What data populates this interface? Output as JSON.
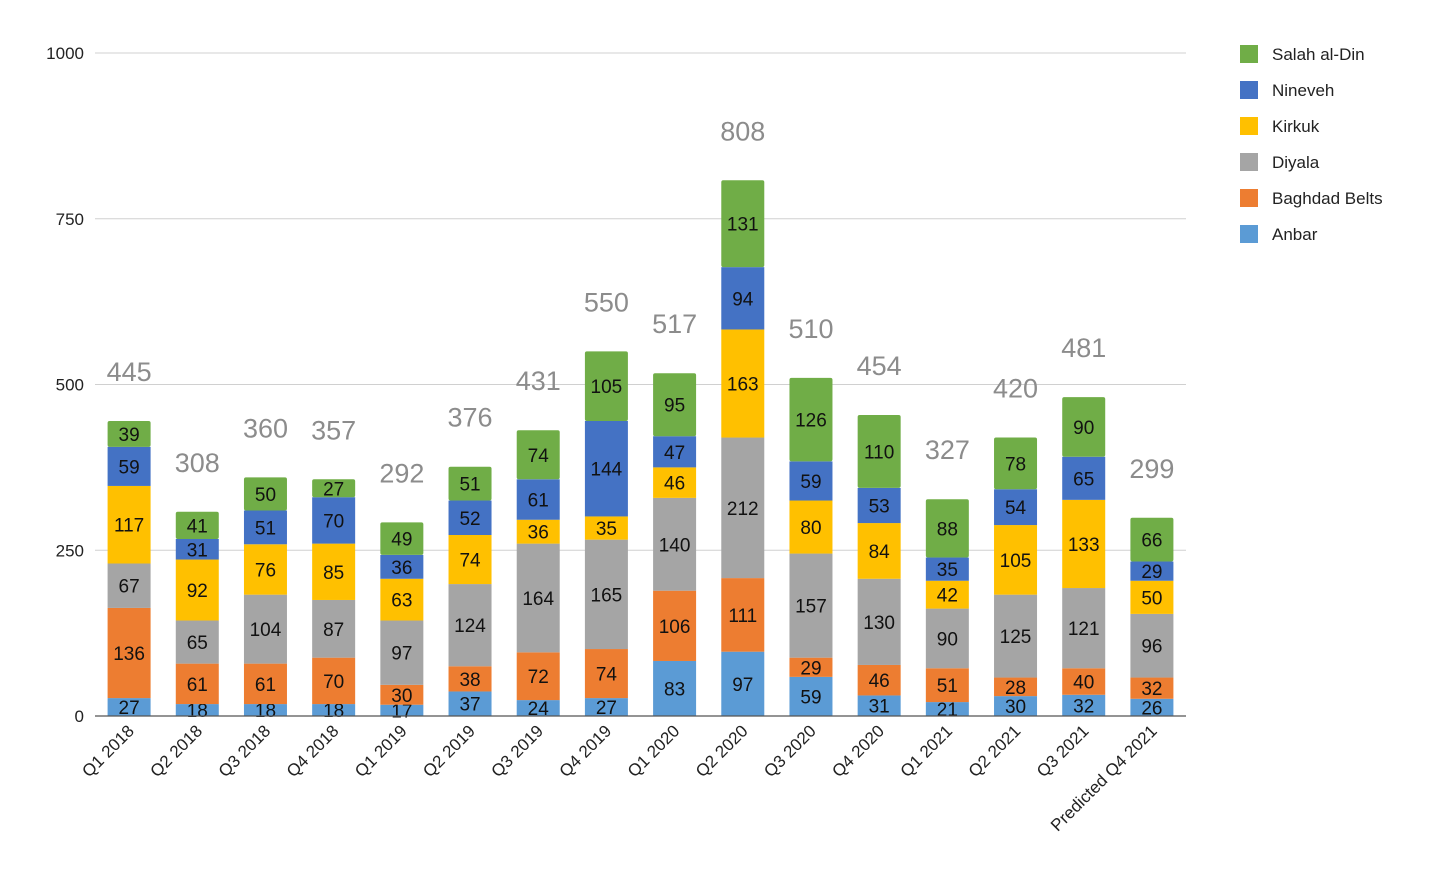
{
  "chart_data": {
    "type": "bar",
    "stacked": true,
    "title": "",
    "xlabel": "",
    "ylabel": "",
    "ylim": [
      0,
      1000
    ],
    "yticks": [
      0,
      250,
      500,
      750,
      1000
    ],
    "grid": true,
    "legend_position": "right",
    "categories": [
      "Q1 2018",
      "Q2 2018",
      "Q3 2018",
      "Q4 2018",
      "Q1 2019",
      "Q2 2019",
      "Q3 2019",
      "Q4 2019",
      "Q1 2020",
      "Q2 2020",
      "Q3 2020",
      "Q4 2020",
      "Q1 2021",
      "Q2 2021",
      "Q3 2021",
      "Predicted Q4 2021"
    ],
    "series": [
      {
        "name": "Anbar",
        "color": "#5b9bd5",
        "values": [
          27,
          18,
          18,
          18,
          17,
          37,
          24,
          27,
          83,
          97,
          59,
          31,
          21,
          30,
          32,
          26
        ]
      },
      {
        "name": "Baghdad Belts",
        "color": "#ed7d31",
        "values": [
          136,
          61,
          61,
          70,
          30,
          38,
          72,
          74,
          106,
          111,
          29,
          46,
          51,
          28,
          40,
          32
        ]
      },
      {
        "name": "Diyala",
        "color": "#a5a5a5",
        "values": [
          67,
          65,
          104,
          87,
          97,
          124,
          164,
          165,
          140,
          212,
          157,
          130,
          90,
          125,
          121,
          96
        ]
      },
      {
        "name": "Kirkuk",
        "color": "#ffc000",
        "values": [
          117,
          92,
          76,
          85,
          63,
          74,
          36,
          35,
          46,
          163,
          80,
          84,
          42,
          105,
          133,
          50
        ]
      },
      {
        "name": "Nineveh",
        "color": "#4472c4",
        "values": [
          59,
          31,
          51,
          70,
          36,
          52,
          61,
          144,
          47,
          94,
          59,
          53,
          35,
          54,
          65,
          29
        ]
      },
      {
        "name": "Salah al-Din",
        "color": "#70ad47",
        "values": [
          39,
          41,
          50,
          27,
          49,
          51,
          74,
          105,
          95,
          131,
          126,
          110,
          88,
          78,
          90,
          66
        ]
      }
    ],
    "totals": [
      445,
      308,
      360,
      357,
      292,
      376,
      431,
      550,
      517,
      808,
      510,
      454,
      327,
      420,
      481,
      299
    ],
    "legend_order": [
      "Salah al-Din",
      "Nineveh",
      "Kirkuk",
      "Diyala",
      "Baghdad Belts",
      "Anbar"
    ]
  }
}
